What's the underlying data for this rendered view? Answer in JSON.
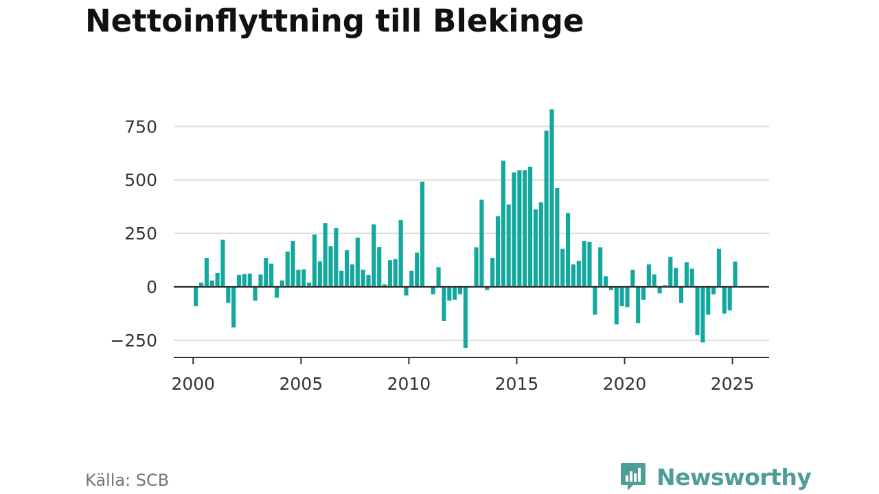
{
  "title": "Nettoinflyttning till Blekinge",
  "source": "Källa: SCB",
  "brand": {
    "name": "Newsworthy",
    "icon": "newsworthy-logo-icon",
    "color": "#4e9d96"
  },
  "colors": {
    "bar": "#13a89e",
    "grid": "#dddddd",
    "zero_line": "#333333",
    "axis_text": "#333333"
  },
  "chart_data": {
    "type": "bar",
    "frequency": "quarterly",
    "x_start": "2000 Q1",
    "xlim": [
      1999.1,
      2026.7
    ],
    "ylim": [
      -330,
      860
    ],
    "y_ticks": [
      -250,
      0,
      250,
      500,
      750
    ],
    "y_tick_labels": [
      "−250",
      "0",
      "250",
      "500",
      "750"
    ],
    "x_ticks": [
      2000,
      2005,
      2010,
      2015,
      2020,
      2025
    ],
    "x_tick_labels": [
      "2000",
      "2005",
      "2010",
      "2015",
      "2020",
      "2025"
    ],
    "grid": true,
    "xlabel": "",
    "ylabel": "",
    "values": [
      -90,
      20,
      135,
      30,
      65,
      220,
      -75,
      -190,
      55,
      60,
      62,
      -65,
      58,
      135,
      108,
      -50,
      30,
      165,
      215,
      80,
      82,
      20,
      245,
      120,
      298,
      190,
      275,
      75,
      172,
      105,
      230,
      80,
      55,
      292,
      186,
      12,
      125,
      130,
      312,
      -40,
      75,
      160,
      492,
      0,
      -35,
      92,
      -160,
      -65,
      -60,
      -35,
      -285,
      0,
      185,
      408,
      -15,
      135,
      330,
      590,
      385,
      535,
      545,
      545,
      562,
      362,
      395,
      730,
      830,
      462,
      178,
      345,
      105,
      122,
      215,
      210,
      -130,
      185,
      50,
      -15,
      -175,
      -90,
      -95,
      80,
      -170,
      -60,
      105,
      58,
      -30,
      8,
      140,
      88,
      -75,
      115,
      85,
      -225,
      -260,
      -130,
      -35,
      178,
      -125,
      -110,
      118
    ]
  }
}
